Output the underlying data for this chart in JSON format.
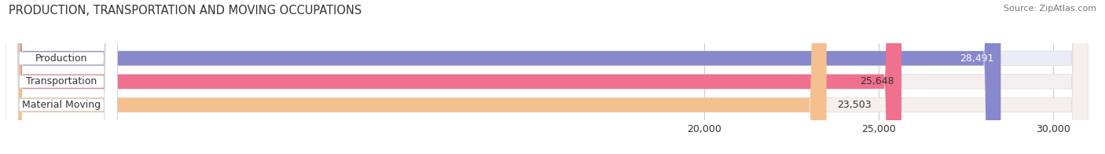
{
  "title": "PRODUCTION, TRANSPORTATION AND MOVING OCCUPATIONS",
  "source": "Source: ZipAtlas.com",
  "categories": [
    "Production",
    "Transportation",
    "Material Moving"
  ],
  "values": [
    28491,
    25648,
    23503
  ],
  "bar_colors": [
    "#8888cc",
    "#f07090",
    "#f5c090"
  ],
  "bar_bg_colors": [
    "#ebebf5",
    "#f5eeee",
    "#f5f0eb"
  ],
  "value_labels": [
    "28,491",
    "25,648",
    "23,503"
  ],
  "value_label_colors": [
    "#ffffff",
    "#333333",
    "#333333"
  ],
  "xlim": [
    0,
    31000
  ],
  "xstart": 0,
  "xticks": [
    20000,
    25000,
    30000
  ],
  "xtick_labels": [
    "20,000",
    "25,000",
    "30,000"
  ],
  "background_color": "#ffffff",
  "bar_height": 0.62,
  "title_fontsize": 10.5,
  "label_fontsize": 9,
  "value_fontsize": 9,
  "tick_fontsize": 9,
  "source_fontsize": 8
}
